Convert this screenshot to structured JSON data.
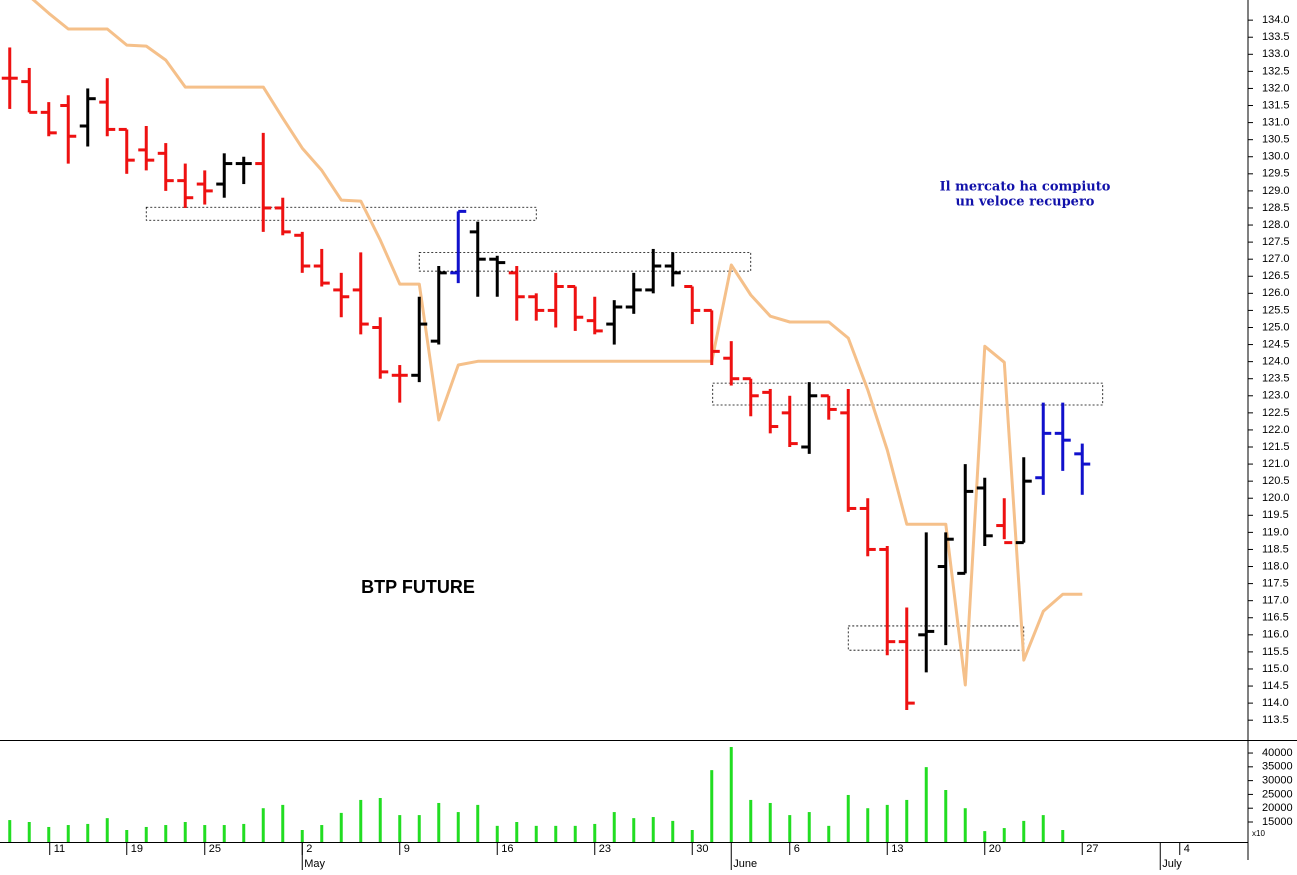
{
  "chart_data": {
    "type": "ohlc",
    "label": "BTP FUTURE",
    "annotation": [
      "Il mercato ha compiuto",
      "un veloce recupero"
    ],
    "categories": [
      null,
      null,
      null,
      null,
      null,
      null,
      null,
      null,
      null,
      null,
      null,
      null,
      null,
      null,
      null,
      null,
      null,
      null,
      null,
      null,
      null,
      null,
      null,
      null,
      null,
      null,
      null,
      null,
      null,
      null,
      null,
      null,
      null,
      null,
      null,
      null,
      null,
      null,
      null,
      null,
      null,
      null,
      null,
      null,
      null,
      null,
      null,
      null,
      null,
      null,
      null,
      null,
      null,
      null,
      null,
      null
    ],
    "open": [
      132.3,
      132.2,
      131.3,
      131.5,
      130.9,
      131.6,
      130.8,
      130.2,
      130.1,
      129.3,
      129.2,
      129.2,
      129.8,
      129.8,
      128.5,
      127.7,
      126.8,
      126.1,
      126.1,
      125.0,
      123.6,
      123.6,
      124.6,
      126.6,
      127.8,
      127.0,
      126.6,
      125.9,
      125.5,
      126.2,
      125.2,
      125.1,
      125.6,
      126.1,
      126.8,
      126.2,
      125.5,
      124.1,
      123.5,
      123.1,
      122.5,
      121.5,
      123.0,
      122.5,
      119.7,
      118.5,
      115.8,
      116.0,
      118.0,
      117.8,
      120.3,
      119.2,
      118.7,
      120.6,
      121.9,
      121.3
    ],
    "high": [
      133.2,
      132.6,
      131.6,
      131.8,
      132.0,
      132.3,
      130.8,
      130.9,
      130.4,
      129.8,
      129.6,
      130.1,
      130.0,
      130.7,
      128.8,
      127.8,
      127.3,
      126.6,
      127.2,
      125.3,
      123.9,
      125.9,
      126.8,
      128.4,
      128.1,
      127.1,
      126.8,
      126.0,
      126.6,
      126.2,
      125.9,
      125.8,
      126.6,
      127.3,
      127.2,
      126.2,
      125.5,
      124.6,
      123.5,
      123.2,
      123.0,
      123.4,
      123.0,
      123.2,
      120.0,
      118.6,
      116.8,
      119.0,
      119.0,
      121.0,
      120.6,
      120.0,
      121.2,
      122.8,
      122.8,
      121.6
    ],
    "low": [
      131.4,
      131.3,
      130.6,
      129.8,
      130.3,
      130.6,
      129.5,
      129.6,
      129.0,
      128.5,
      128.6,
      128.8,
      129.2,
      127.8,
      127.7,
      126.6,
      126.2,
      125.3,
      124.8,
      123.5,
      122.8,
      123.4,
      124.5,
      126.3,
      125.9,
      125.9,
      125.2,
      125.2,
      125.0,
      124.9,
      124.8,
      124.5,
      125.4,
      126.0,
      126.2,
      125.1,
      123.9,
      123.3,
      122.4,
      121.9,
      121.5,
      121.3,
      122.3,
      119.6,
      118.3,
      115.4,
      113.8,
      114.9,
      115.7,
      117.8,
      118.6,
      118.8,
      118.7,
      120.1,
      120.8,
      120.1
    ],
    "close": [
      132.3,
      131.3,
      130.7,
      130.6,
      131.7,
      130.8,
      129.9,
      129.9,
      129.3,
      128.8,
      129.0,
      129.8,
      129.8,
      128.5,
      127.8,
      126.8,
      126.3,
      125.9,
      125.1,
      123.7,
      123.6,
      125.1,
      126.6,
      128.4,
      127.0,
      126.9,
      125.9,
      125.5,
      126.2,
      125.3,
      124.9,
      125.6,
      126.1,
      126.8,
      126.6,
      125.5,
      124.3,
      123.5,
      123.0,
      122.1,
      121.6,
      123.0,
      122.6,
      119.7,
      118.5,
      115.8,
      114.0,
      116.1,
      118.8,
      120.2,
      118.9,
      118.7,
      120.5,
      121.9,
      121.7,
      121.0
    ],
    "colors": [
      "#ee1111",
      "#ee1111",
      "#ee1111",
      "#ee1111",
      "#000000",
      "#ee1111",
      "#ee1111",
      "#ee1111",
      "#ee1111",
      "#ee1111",
      "#ee1111",
      "#000000",
      "#000000",
      "#ee1111",
      "#ee1111",
      "#ee1111",
      "#ee1111",
      "#ee1111",
      "#ee1111",
      "#ee1111",
      "#ee1111",
      "#000000",
      "#000000",
      "#1111cc",
      "#000000",
      "#000000",
      "#ee1111",
      "#ee1111",
      "#ee1111",
      "#ee1111",
      "#ee1111",
      "#000000",
      "#000000",
      "#000000",
      "#000000",
      "#ee1111",
      "#ee1111",
      "#ee1111",
      "#ee1111",
      "#ee1111",
      "#ee1111",
      "#000000",
      "#ee1111",
      "#ee1111",
      "#ee1111",
      "#ee1111",
      "#ee1111",
      "#000000",
      "#000000",
      "#000000",
      "#000000",
      "#ee1111",
      "#000000",
      "#1111cc",
      "#1111cc",
      "#1111cc"
    ],
    "indicator": {
      "color": "#f5c08a",
      "values": [
        null,
        134.7,
        134.2,
        133.74,
        133.74,
        133.74,
        133.27,
        133.24,
        132.83,
        132.04,
        132.04,
        132.04,
        132.04,
        132.04,
        131.13,
        130.25,
        129.6,
        128.73,
        128.7,
        127.56,
        126.27,
        126.27,
        122.29,
        123.9,
        124.01,
        124.01,
        124.01,
        124.01,
        124.01,
        124.01,
        124.01,
        124.01,
        124.01,
        124.01,
        124.01,
        124.01,
        124.01,
        126.83,
        125.95,
        125.33,
        125.16,
        125.16,
        125.16,
        124.69,
        123.17,
        121.41,
        119.24,
        119.24,
        119.24,
        114.53,
        124.45,
        123.98,
        115.26,
        116.69,
        117.19,
        117.19
      ]
    },
    "zones": [
      {
        "from": 7.0,
        "to": 27.0,
        "low": 128.14,
        "high": 128.52
      },
      {
        "from": 21.0,
        "to": 38.0,
        "low": 126.65,
        "high": 127.2
      },
      {
        "from": 36.05,
        "to": 56.05,
        "low": 122.73,
        "high": 123.37
      },
      {
        "from": 43.0,
        "to": 52.0,
        "low": 115.55,
        "high": 116.26
      }
    ],
    "xlim": [
      -0.5,
      63.5
    ],
    "ylim": [
      112.92,
      134.59
    ],
    "yticks": [
      113.5,
      {
        "value": 114,
        "label": "114.0"
      },
      114.5,
      {
        "value": 115,
        "label": "115.0"
      },
      115.5,
      {
        "value": 116,
        "label": "116.0"
      },
      116.5,
      {
        "value": 117,
        "label": "117.0"
      },
      117.5,
      {
        "value": 118,
        "label": "118.0"
      },
      118.5,
      {
        "value": 119,
        "label": "119.0"
      },
      119.5,
      {
        "value": 120,
        "label": "120.0"
      },
      120.5,
      {
        "value": 121,
        "label": "121.0"
      },
      121.5,
      {
        "value": 122,
        "label": "122.0"
      },
      122.5,
      {
        "value": 123,
        "label": "123.0"
      },
      123.5,
      {
        "value": 124,
        "label": "124.0"
      },
      124.5,
      {
        "value": 125,
        "label": "125.0"
      },
      125.5,
      {
        "value": 126,
        "label": "126.0"
      },
      126.5,
      {
        "value": 127,
        "label": "127.0"
      },
      127.5,
      {
        "value": 128,
        "label": "128.0"
      },
      128.5,
      {
        "value": 129,
        "label": "129.0"
      },
      129.5,
      {
        "value": 130,
        "label": "130.0"
      },
      130.5,
      {
        "value": 131,
        "label": "131.0"
      },
      131.5,
      {
        "value": 132,
        "label": "132.0"
      },
      132.5,
      {
        "value": 133,
        "label": "133.0"
      },
      133.5,
      {
        "value": 134,
        "label": "134.0"
      }
    ],
    "xticks": [
      {
        "value": 2.05,
        "label": "11"
      },
      {
        "value": 6,
        "label": "19"
      },
      {
        "value": 10,
        "label": "25"
      },
      {
        "value": 15,
        "label": "2"
      },
      {
        "value": 20,
        "label": "9"
      },
      {
        "value": 25,
        "label": "16"
      },
      {
        "value": 30,
        "label": "23"
      },
      {
        "value": 35,
        "label": "30"
      },
      {
        "value": 40,
        "label": "6"
      },
      {
        "value": 45,
        "label": "13"
      },
      {
        "value": 50,
        "label": "20"
      },
      {
        "value": 55,
        "label": "27"
      },
      {
        "value": 60,
        "label": "4"
      }
    ],
    "month_ticks": [
      {
        "value": 15,
        "label": "May"
      },
      {
        "value": 37,
        "label": "June"
      },
      {
        "value": 59,
        "label": "July"
      }
    ],
    "volume": {
      "color": "#22dd22",
      "unit_label": "x10",
      "values": [
        15700,
        15000,
        13200,
        13900,
        14300,
        16400,
        12100,
        13200,
        13900,
        15000,
        13900,
        13900,
        14300,
        20000,
        21200,
        12100,
        13900,
        18300,
        23000,
        23700,
        17500,
        17500,
        21900,
        18600,
        21200,
        13600,
        15000,
        13600,
        13600,
        13600,
        14300,
        18600,
        16400,
        16800,
        15400,
        12100,
        33800,
        42200,
        23000,
        21900,
        17500,
        18600,
        13600,
        24800,
        20000,
        21200,
        23000,
        34900,
        26600,
        20000,
        11700,
        12800,
        15400,
        17500,
        12100,
        null
      ],
      "ylim": [
        7750,
        44000
      ],
      "yticks": [
        15000,
        20000,
        25000,
        30000,
        35000,
        40000
      ]
    }
  }
}
